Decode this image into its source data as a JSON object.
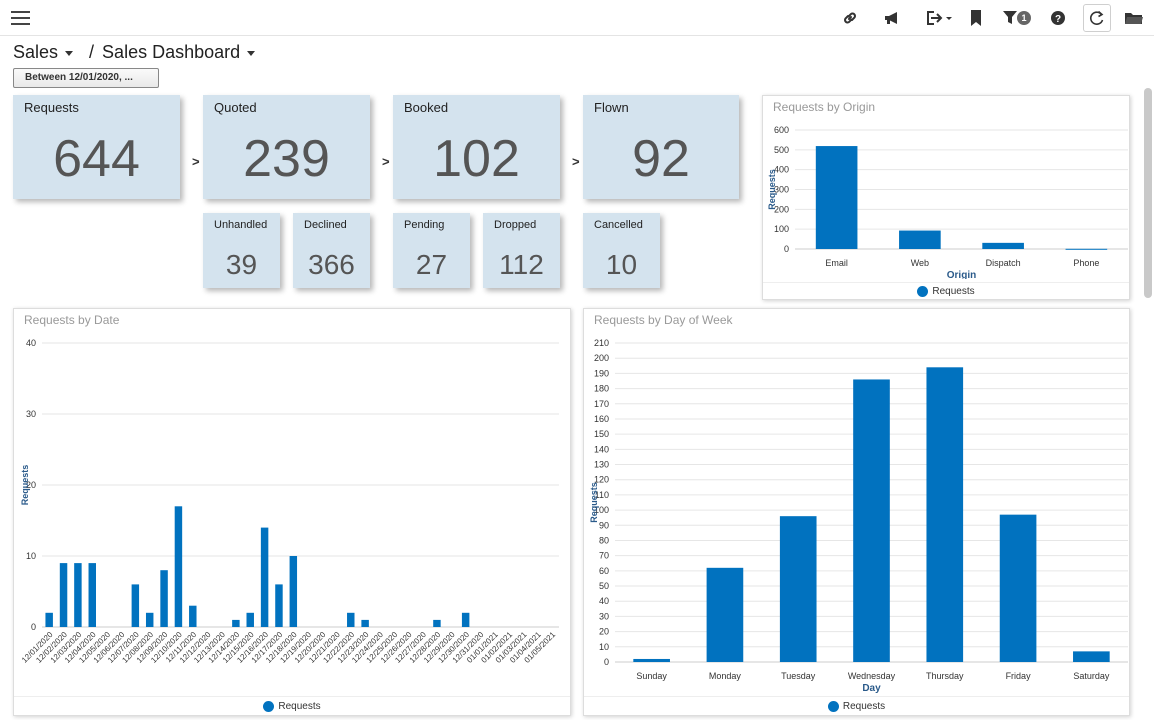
{
  "colors": {
    "bar": "#0172bf",
    "card": "#d4e3ee"
  },
  "toolbar": {
    "menu_icon": "hamburger-menu-icon",
    "icons": [
      "link-icon",
      "megaphone-icon",
      "export-icon",
      "bookmark-icon",
      "filter-icon",
      "help-icon",
      "refresh-icon",
      "folder-icon"
    ],
    "filter_count": "1"
  },
  "breadcrumb": {
    "root": "Sales",
    "separator": "/",
    "page": "Sales Dashboard"
  },
  "date_filter": {
    "label": "Between 12/01/2020, ..."
  },
  "kpis": {
    "requests": {
      "label": "Requests",
      "value": "644"
    },
    "quoted": {
      "label": "Quoted",
      "value": "239"
    },
    "booked": {
      "label": "Booked",
      "value": "102"
    },
    "flown": {
      "label": "Flown",
      "value": "92"
    },
    "arrow": ">"
  },
  "sub_kpis": {
    "unhandled": {
      "label": "Unhandled",
      "value": "39"
    },
    "declined": {
      "label": "Declined",
      "value": "366"
    },
    "pending": {
      "label": "Pending",
      "value": "27"
    },
    "dropped": {
      "label": "Dropped",
      "value": "112"
    },
    "cancelled": {
      "label": "Cancelled",
      "value": "10"
    }
  },
  "charts": {
    "origin": {
      "title": "Requests by Origin",
      "legend": "Requests"
    },
    "date": {
      "title": "Requests by Date",
      "legend": "Requests"
    },
    "dow": {
      "title": "Requests by Day of Week",
      "legend": "Requests"
    }
  },
  "chart_data": [
    {
      "type": "bar",
      "title": "Requests by Origin",
      "categories": [
        "Email",
        "Web",
        "Dispatch",
        "Phone"
      ],
      "series": [
        {
          "name": "Requests",
          "values": [
            519,
            93,
            31,
            1
          ]
        }
      ],
      "xlabel": "Origin",
      "ylabel": "Requests",
      "ylim": [
        0,
        600
      ],
      "yticks": [
        0,
        100,
        200,
        300,
        400,
        500,
        600
      ],
      "grid": true,
      "legend": "bottom"
    },
    {
      "type": "bar",
      "title": "Requests by Date",
      "categories": [
        "12/01/2020",
        "12/02/2020",
        "12/03/2020",
        "12/04/2020",
        "12/05/2020",
        "12/06/2020",
        "12/07/2020",
        "12/08/2020",
        "12/09/2020",
        "12/10/2020",
        "12/11/2020",
        "12/12/2020",
        "12/13/2020",
        "12/14/2020",
        "12/15/2020",
        "12/16/2020",
        "12/17/2020",
        "12/18/2020",
        "12/19/2020",
        "12/20/2020",
        "12/21/2020",
        "12/22/2020",
        "12/23/2020",
        "12/24/2020",
        "12/25/2020",
        "12/26/2020",
        "12/27/2020",
        "12/28/2020",
        "12/29/2020",
        "12/30/2020",
        "12/31/2020",
        "01/01/2021",
        "01/02/2021",
        "01/03/2021",
        "01/04/2021",
        "01/05/2021"
      ],
      "series": [
        {
          "name": "Requests",
          "values": [
            2,
            9,
            9,
            9,
            0,
            0,
            6,
            2,
            8,
            17,
            3,
            0,
            0,
            1,
            2,
            14,
            6,
            10,
            0,
            0,
            0,
            2,
            1,
            0,
            0,
            0,
            0,
            1,
            0,
            2,
            0,
            0,
            0,
            0,
            0,
            0
          ]
        }
      ],
      "xlabel": "",
      "ylabel": "Requests",
      "ylim": [
        0,
        40
      ],
      "yticks": [
        0,
        10,
        20,
        30,
        40
      ],
      "grid": true,
      "legend": "bottom"
    },
    {
      "type": "bar",
      "title": "Requests by Day of Week",
      "categories": [
        "Sunday",
        "Monday",
        "Tuesday",
        "Wednesday",
        "Thursday",
        "Friday",
        "Saturday"
      ],
      "series": [
        {
          "name": "Requests",
          "values": [
            2,
            62,
            96,
            186,
            194,
            97,
            7
          ]
        }
      ],
      "xlabel": "Day",
      "ylabel": "Requests",
      "ylim": [
        0,
        210
      ],
      "yticks": [
        0,
        10,
        20,
        30,
        40,
        50,
        60,
        70,
        80,
        90,
        100,
        110,
        120,
        130,
        140,
        150,
        160,
        170,
        180,
        190,
        200,
        210
      ],
      "grid": true,
      "legend": "bottom"
    }
  ]
}
